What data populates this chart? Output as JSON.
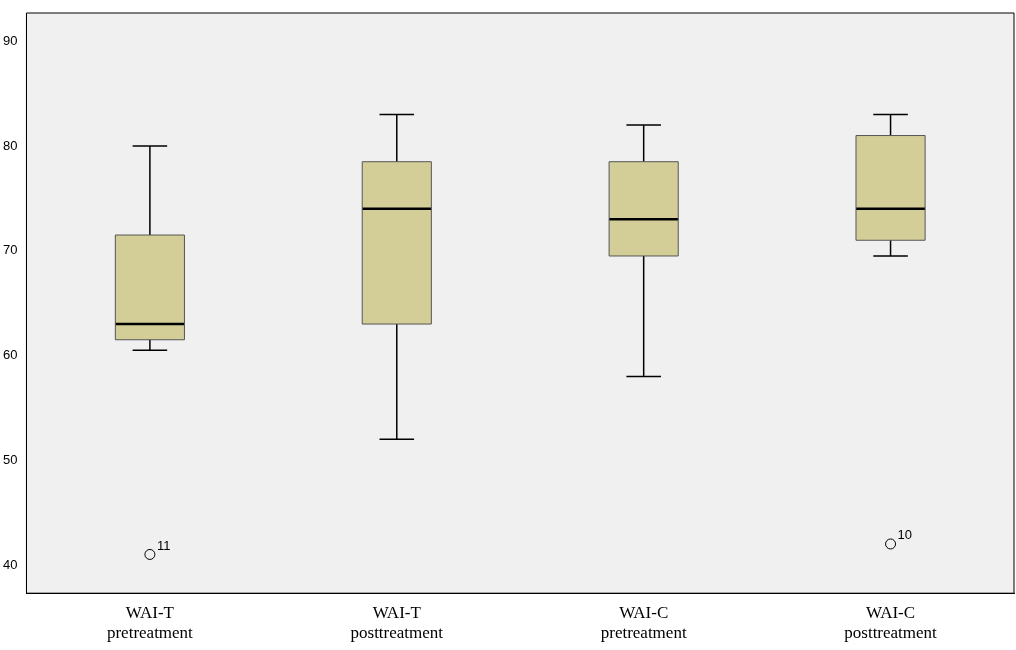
{
  "chart_data": {
    "type": "box",
    "categories": [
      "WAI-T\npretreatment",
      "WAI-T\nposttreatment",
      "WAI-C\npretreatment",
      "WAI-C\nposttreatment"
    ],
    "boxes": [
      {
        "low": 60.5,
        "q1": 61.5,
        "median": 63,
        "q3": 71.5,
        "high": 80,
        "outliers": [
          41
        ]
      },
      {
        "low": 52,
        "q1": 63,
        "median": 74,
        "q3": 78.5,
        "high": 83
      },
      {
        "low": 58,
        "q1": 69.5,
        "median": 73,
        "q3": 78.5,
        "high": 82
      },
      {
        "low": 69.5,
        "q1": 71,
        "median": 74,
        "q3": 81,
        "high": 83,
        "outliers": [
          42
        ]
      }
    ],
    "color": "#d3ce98",
    "ylim": [
      37.3,
      92.7
    ],
    "yticks": [
      40,
      50,
      60,
      70,
      80,
      90
    ],
    "grid": false,
    "legend": false,
    "annotations": [
      "11",
      "10"
    ]
  }
}
